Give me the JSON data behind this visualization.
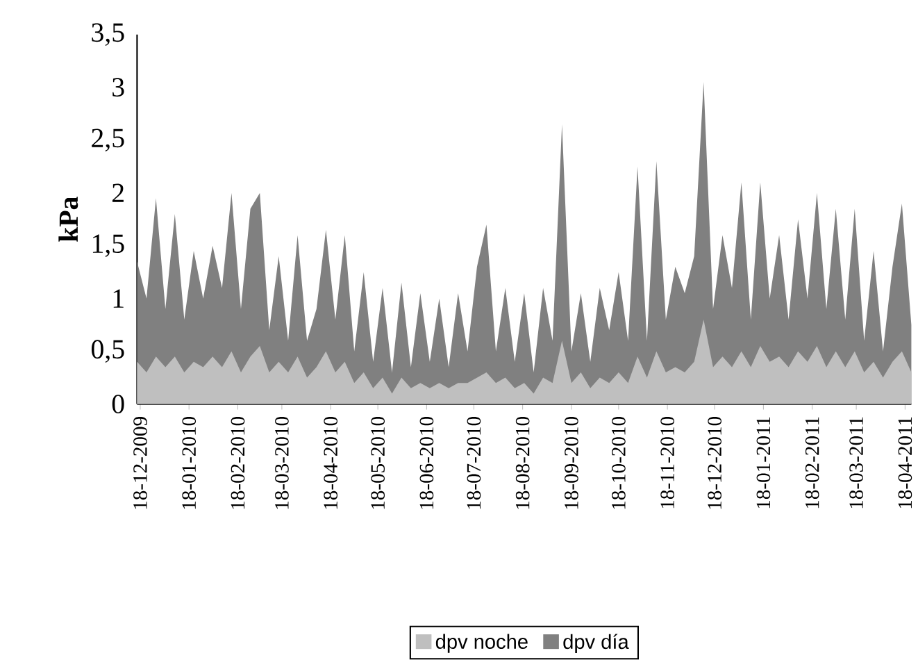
{
  "chart_data": {
    "type": "area",
    "ylabel": "kPa",
    "x": [
      "2009-12-16",
      "2009-12-22",
      "2009-12-28",
      "2010-01-03",
      "2010-01-09",
      "2010-01-15",
      "2010-01-21",
      "2010-01-27",
      "2010-02-02",
      "2010-02-08",
      "2010-02-14",
      "2010-02-20",
      "2010-02-26",
      "2010-03-04",
      "2010-03-10",
      "2010-03-16",
      "2010-03-22",
      "2010-03-28",
      "2010-04-03",
      "2010-04-09",
      "2010-04-15",
      "2010-04-21",
      "2010-04-27",
      "2010-05-03",
      "2010-05-09",
      "2010-05-15",
      "2010-05-21",
      "2010-05-27",
      "2010-06-02",
      "2010-06-08",
      "2010-06-14",
      "2010-06-20",
      "2010-06-26",
      "2010-07-02",
      "2010-07-08",
      "2010-07-14",
      "2010-07-20",
      "2010-07-26",
      "2010-08-01",
      "2010-08-07",
      "2010-08-13",
      "2010-08-19",
      "2010-08-25",
      "2010-08-31",
      "2010-09-06",
      "2010-09-12",
      "2010-09-18",
      "2010-09-24",
      "2010-09-30",
      "2010-10-06",
      "2010-10-12",
      "2010-10-18",
      "2010-10-24",
      "2010-10-30",
      "2010-11-05",
      "2010-11-11",
      "2010-11-17",
      "2010-11-23",
      "2010-11-29",
      "2010-12-05",
      "2010-12-11",
      "2010-12-17",
      "2010-12-23",
      "2010-12-29",
      "2011-01-04",
      "2011-01-10",
      "2011-01-16",
      "2011-01-22",
      "2011-01-28",
      "2011-02-03",
      "2011-02-09",
      "2011-02-15",
      "2011-02-21",
      "2011-02-27",
      "2011-03-05",
      "2011-03-11",
      "2011-03-17",
      "2011-03-23",
      "2011-03-29",
      "2011-04-04",
      "2011-04-10",
      "2011-04-16",
      "2011-04-22"
    ],
    "series": [
      {
        "name": "dpv noche",
        "color": "#bfbfbf",
        "values": [
          0.4,
          0.3,
          0.45,
          0.35,
          0.45,
          0.3,
          0.4,
          0.35,
          0.45,
          0.35,
          0.5,
          0.3,
          0.45,
          0.55,
          0.3,
          0.4,
          0.3,
          0.45,
          0.25,
          0.35,
          0.5,
          0.3,
          0.4,
          0.2,
          0.3,
          0.15,
          0.25,
          0.1,
          0.25,
          0.15,
          0.2,
          0.15,
          0.2,
          0.15,
          0.2,
          0.2,
          0.25,
          0.3,
          0.2,
          0.25,
          0.15,
          0.2,
          0.1,
          0.25,
          0.2,
          0.6,
          0.2,
          0.3,
          0.15,
          0.25,
          0.2,
          0.3,
          0.2,
          0.45,
          0.25,
          0.5,
          0.3,
          0.35,
          0.3,
          0.4,
          0.8,
          0.35,
          0.45,
          0.35,
          0.5,
          0.35,
          0.55,
          0.4,
          0.45,
          0.35,
          0.5,
          0.4,
          0.55,
          0.35,
          0.5,
          0.35,
          0.5,
          0.3,
          0.4,
          0.25,
          0.4,
          0.5,
          0.3
        ]
      },
      {
        "name": "dpv día",
        "color": "#808080",
        "values": [
          1.35,
          1.0,
          1.95,
          0.9,
          1.8,
          0.8,
          1.45,
          1.0,
          1.5,
          1.1,
          2.0,
          0.9,
          1.85,
          2.0,
          0.7,
          1.4,
          0.6,
          1.6,
          0.6,
          0.9,
          1.65,
          0.8,
          1.6,
          0.5,
          1.25,
          0.4,
          1.1,
          0.3,
          1.15,
          0.35,
          1.05,
          0.4,
          1.0,
          0.35,
          1.05,
          0.5,
          1.3,
          1.7,
          0.5,
          1.1,
          0.4,
          1.05,
          0.3,
          1.1,
          0.6,
          2.65,
          0.5,
          1.05,
          0.4,
          1.1,
          0.7,
          1.25,
          0.6,
          2.25,
          0.6,
          2.3,
          0.8,
          1.3,
          1.05,
          1.4,
          3.05,
          0.9,
          1.6,
          1.1,
          2.1,
          0.8,
          2.1,
          1.0,
          1.6,
          0.8,
          1.75,
          1.0,
          2.0,
          0.9,
          1.85,
          0.8,
          1.85,
          0.6,
          1.45,
          0.5,
          1.3,
          1.9,
          0.75
        ]
      }
    ],
    "xlim": [
      "2009-12-16",
      "2011-04-22"
    ],
    "xticks": [
      {
        "value": "2009-12-18",
        "label": "18-12-2009"
      },
      {
        "value": "2010-01-18",
        "label": "18-01-2010"
      },
      {
        "value": "2010-02-18",
        "label": "18-02-2010"
      },
      {
        "value": "2010-03-18",
        "label": "18-03-2010"
      },
      {
        "value": "2010-04-18",
        "label": "18-04-2010"
      },
      {
        "value": "2010-05-18",
        "label": "18-05-2010"
      },
      {
        "value": "2010-06-18",
        "label": "18-06-2010"
      },
      {
        "value": "2010-07-18",
        "label": "18-07-2010"
      },
      {
        "value": "2010-08-18",
        "label": "18-08-2010"
      },
      {
        "value": "2010-09-18",
        "label": "18-09-2010"
      },
      {
        "value": "2010-10-18",
        "label": "18-10-2010"
      },
      {
        "value": "2010-11-18",
        "label": "18-11-2010"
      },
      {
        "value": "2010-12-18",
        "label": "18-12-2010"
      },
      {
        "value": "2011-01-18",
        "label": "18-01-2011"
      },
      {
        "value": "2011-02-18",
        "label": "18-02-2011"
      },
      {
        "value": "2011-03-18",
        "label": "18-03-2011"
      },
      {
        "value": "2011-04-18",
        "label": "18-04-2011"
      }
    ],
    "ylim": [
      0,
      3.5
    ],
    "yticks": [
      0,
      {
        "value": 0.5,
        "label": "0,5"
      },
      1,
      {
        "value": 1.5,
        "label": "1,5"
      },
      2,
      {
        "value": 2.5,
        "label": "2,5"
      },
      3,
      {
        "value": 3.5,
        "label": "3,5"
      }
    ],
    "legend": "bottom"
  }
}
